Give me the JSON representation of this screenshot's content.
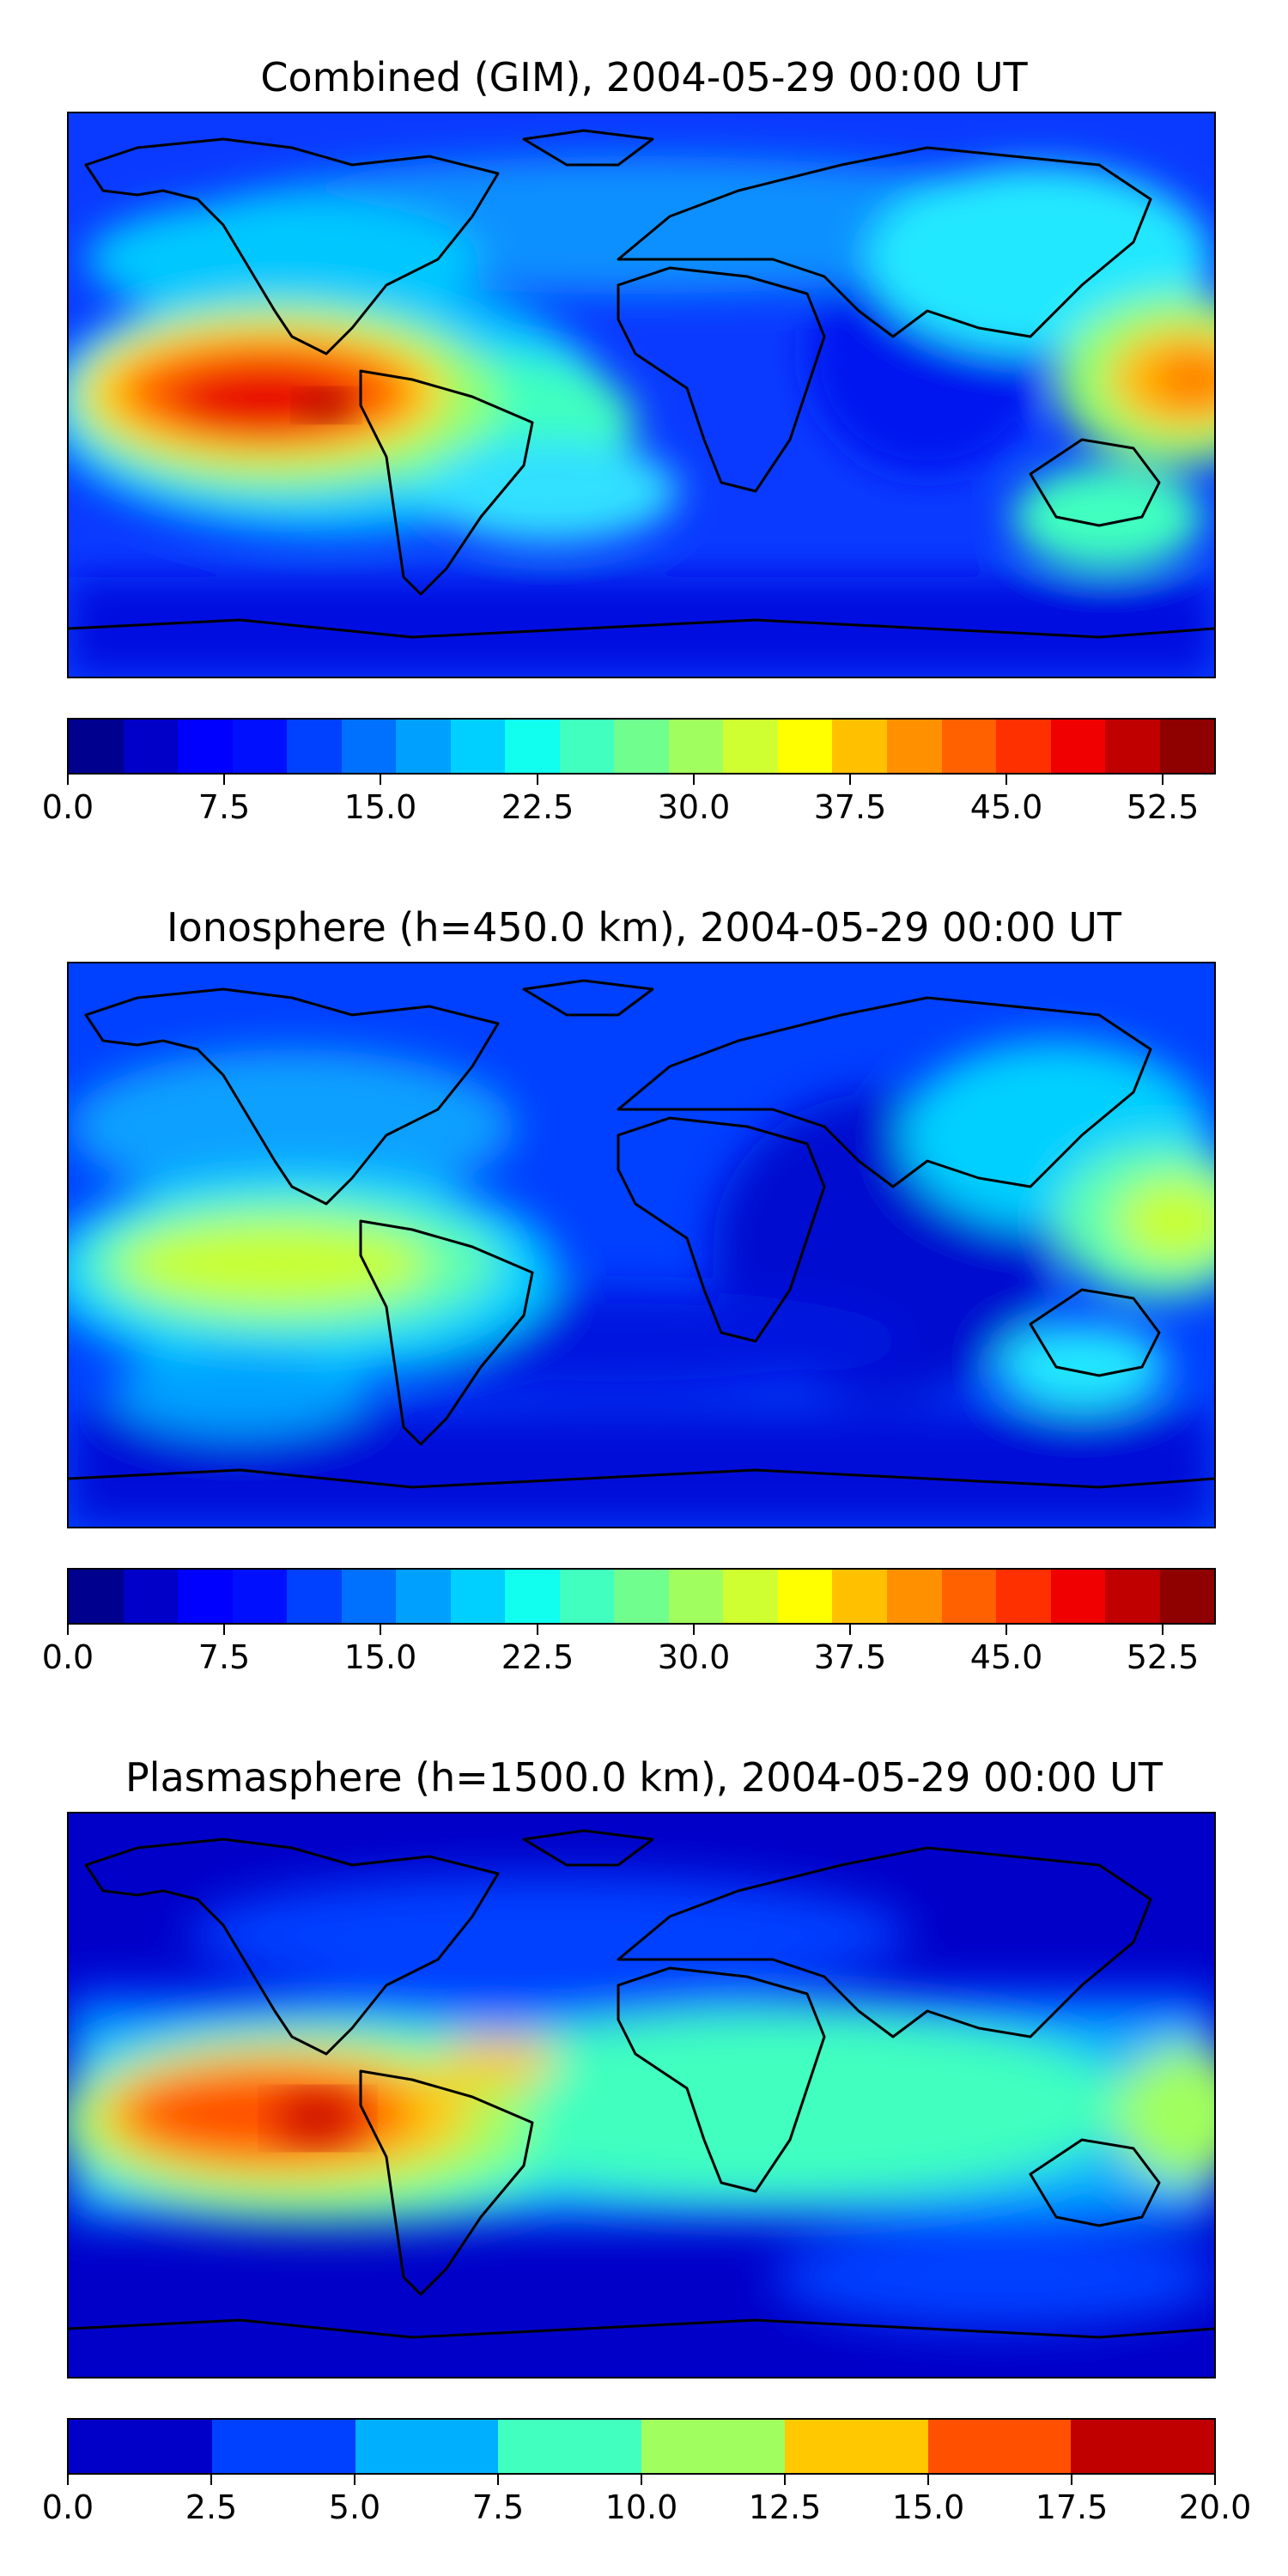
{
  "panels": [
    {
      "title": "Combined (GIM), 2004-05-29 00:00 UT",
      "colorbar": {
        "min": 0,
        "max": 55,
        "step": 2.5,
        "colors": [
          "#00008f",
          "#0000c8",
          "#0000ff",
          "#0010ff",
          "#0040ff",
          "#0070ff",
          "#00a0ff",
          "#00d0ff",
          "#10ffef",
          "#40ffbf",
          "#70ff8f",
          "#a0ff5f",
          "#cfff30",
          "#ffff00",
          "#ffc000",
          "#ff9000",
          "#ff6000",
          "#ff3000",
          "#f00000",
          "#c00000",
          "#8f0000"
        ],
        "tick_labels": [
          "0.0",
          "7.5",
          "15.0",
          "22.5",
          "30.0",
          "37.5",
          "45.0",
          "52.5"
        ],
        "tick_values": [
          0,
          7.5,
          15,
          22.5,
          30,
          37.5,
          45,
          52.5
        ]
      }
    },
    {
      "title": "Ionosphere  (h=450.0 km), 2004-05-29 00:00 UT",
      "colorbar": {
        "min": 0,
        "max": 55,
        "step": 2.5,
        "colors": [
          "#00008f",
          "#0000c8",
          "#0000ff",
          "#0010ff",
          "#0040ff",
          "#0070ff",
          "#00a0ff",
          "#00d0ff",
          "#10ffef",
          "#40ffbf",
          "#70ff8f",
          "#a0ff5f",
          "#cfff30",
          "#ffff00",
          "#ffc000",
          "#ff9000",
          "#ff6000",
          "#ff3000",
          "#f00000",
          "#c00000",
          "#8f0000"
        ],
        "tick_labels": [
          "0.0",
          "7.5",
          "15.0",
          "22.5",
          "30.0",
          "37.5",
          "45.0",
          "52.5"
        ],
        "tick_values": [
          0,
          7.5,
          15,
          22.5,
          30,
          37.5,
          45,
          52.5
        ]
      }
    },
    {
      "title": "Plasmasphere (h=1500.0 km), 2004-05-29 00:00 UT",
      "colorbar": {
        "min": 0,
        "max": 20,
        "step": 2.5,
        "colors": [
          "#0000c8",
          "#0040ff",
          "#00b0ff",
          "#40ffbf",
          "#a0ff5f",
          "#ffc800",
          "#ff5000",
          "#c00000"
        ],
        "tick_labels": [
          "0.0",
          "2.5",
          "5.0",
          "7.5",
          "10.0",
          "12.5",
          "15.0",
          "17.5",
          "20.0"
        ],
        "tick_values": [
          0,
          2.5,
          5,
          7.5,
          10,
          12.5,
          15,
          17.5,
          20
        ]
      }
    }
  ]
}
